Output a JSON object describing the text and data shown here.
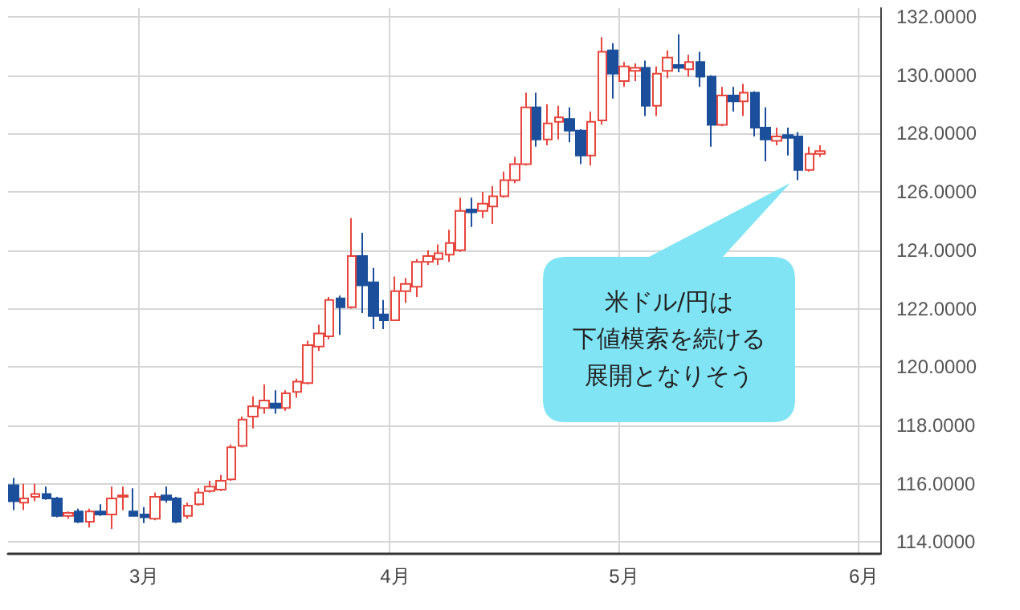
{
  "chart_data": {
    "type": "candlestick",
    "categories": [
      null,
      null,
      null,
      null,
      null,
      null,
      null,
      null,
      null,
      null,
      null,
      null,
      "3月",
      null,
      null,
      null,
      null,
      null,
      null,
      null,
      null,
      null,
      null,
      null,
      null,
      null,
      null,
      null,
      null,
      null,
      null,
      null,
      null,
      null,
      null,
      "4月",
      null,
      null,
      null,
      null,
      null,
      null,
      null,
      null,
      null,
      null,
      null,
      null,
      null,
      null,
      null,
      null,
      null,
      null,
      null,
      null,
      "5月",
      null,
      null,
      null,
      null,
      null,
      null,
      null,
      null,
      null,
      null,
      null,
      null,
      null,
      null,
      null,
      null,
      null,
      null,
      null,
      null,
      null,
      "6月",
      null
    ],
    "ohlc": [
      [
        115.95,
        116.2,
        115.1,
        115.4
      ],
      [
        115.35,
        116.0,
        115.1,
        115.5
      ],
      [
        115.55,
        116.0,
        115.4,
        115.65
      ],
      [
        115.65,
        115.9,
        115.45,
        115.5
      ],
      [
        115.5,
        115.55,
        114.85,
        114.9
      ],
      [
        114.9,
        115.05,
        114.8,
        115.0
      ],
      [
        115.05,
        115.15,
        114.65,
        114.7
      ],
      [
        114.7,
        115.15,
        114.5,
        115.05
      ],
      [
        115.05,
        115.3,
        114.9,
        114.95
      ],
      [
        114.95,
        115.9,
        114.45,
        115.5
      ],
      [
        115.55,
        115.9,
        115.1,
        115.6
      ],
      [
        115.05,
        115.85,
        114.9,
        114.9
      ],
      [
        114.95,
        115.2,
        114.65,
        114.85
      ],
      [
        114.8,
        115.7,
        114.75,
        115.55
      ],
      [
        115.6,
        115.9,
        115.35,
        115.45
      ],
      [
        115.5,
        115.55,
        114.65,
        114.7
      ],
      [
        114.9,
        115.35,
        114.8,
        115.25
      ],
      [
        115.3,
        115.85,
        115.25,
        115.7
      ],
      [
        115.75,
        116.1,
        115.7,
        115.9
      ],
      [
        115.8,
        116.3,
        115.75,
        116.1
      ],
      [
        116.15,
        117.35,
        116.1,
        117.25
      ],
      [
        117.3,
        118.3,
        117.25,
        118.2
      ],
      [
        118.3,
        119.0,
        117.9,
        118.65
      ],
      [
        118.6,
        119.4,
        118.4,
        118.85
      ],
      [
        118.75,
        119.2,
        118.4,
        118.6
      ],
      [
        118.6,
        119.2,
        118.5,
        119.1
      ],
      [
        119.15,
        119.6,
        118.95,
        119.5
      ],
      [
        119.45,
        120.9,
        119.4,
        120.75
      ],
      [
        120.7,
        121.45,
        120.55,
        121.15
      ],
      [
        121.05,
        122.4,
        120.95,
        122.3
      ],
      [
        122.35,
        122.45,
        121.1,
        122.05
      ],
      [
        122.05,
        125.1,
        122.0,
        123.8
      ],
      [
        123.8,
        124.6,
        121.85,
        122.8
      ],
      [
        122.9,
        123.4,
        121.3,
        121.75
      ],
      [
        121.8,
        122.3,
        121.3,
        121.6
      ],
      [
        121.6,
        123.1,
        121.6,
        122.6
      ],
      [
        122.6,
        123.05,
        122.2,
        122.85
      ],
      [
        122.75,
        123.7,
        122.4,
        123.6
      ],
      [
        123.6,
        124.0,
        123.5,
        123.8
      ],
      [
        123.7,
        124.2,
        123.5,
        123.9
      ],
      [
        123.85,
        124.7,
        123.6,
        124.25
      ],
      [
        124.0,
        125.8,
        123.95,
        125.35
      ],
      [
        125.4,
        125.8,
        124.8,
        125.3
      ],
      [
        125.35,
        126.0,
        125.1,
        125.6
      ],
      [
        125.5,
        126.2,
        124.9,
        125.85
      ],
      [
        125.85,
        126.7,
        125.8,
        126.4
      ],
      [
        126.4,
        127.2,
        126.3,
        126.95
      ],
      [
        126.95,
        129.4,
        126.9,
        128.9
      ],
      [
        128.9,
        129.4,
        127.55,
        127.8
      ],
      [
        127.8,
        129.0,
        127.6,
        128.35
      ],
      [
        128.4,
        128.95,
        127.8,
        128.55
      ],
      [
        128.5,
        128.9,
        127.7,
        128.1
      ],
      [
        128.1,
        128.15,
        126.95,
        127.25
      ],
      [
        127.25,
        128.75,
        126.9,
        128.4
      ],
      [
        128.45,
        131.3,
        128.3,
        130.8
      ],
      [
        130.85,
        131.1,
        129.2,
        130.05
      ],
      [
        129.8,
        130.45,
        129.6,
        130.3
      ],
      [
        130.15,
        130.4,
        129.8,
        130.25
      ],
      [
        130.25,
        130.5,
        128.6,
        128.95
      ],
      [
        128.95,
        130.3,
        128.6,
        130.05
      ],
      [
        130.15,
        130.85,
        129.9,
        130.6
      ],
      [
        130.35,
        131.4,
        130.1,
        130.25
      ],
      [
        130.2,
        130.7,
        129.95,
        130.45
      ],
      [
        130.45,
        130.8,
        129.6,
        129.95
      ],
      [
        129.95,
        130.0,
        127.55,
        128.3
      ],
      [
        128.3,
        129.6,
        128.25,
        129.3
      ],
      [
        129.3,
        129.6,
        128.75,
        129.1
      ],
      [
        129.1,
        129.7,
        128.6,
        129.4
      ],
      [
        129.4,
        129.45,
        127.9,
        128.2
      ],
      [
        128.2,
        128.9,
        127.05,
        127.8
      ],
      [
        127.75,
        128.2,
        127.6,
        127.9
      ],
      [
        127.95,
        128.2,
        127.25,
        127.85
      ],
      [
        127.9,
        128.05,
        126.4,
        126.75
      ],
      [
        126.75,
        127.55,
        126.7,
        127.3
      ],
      [
        127.3,
        127.6,
        127.2,
        127.4
      ],
      null,
      null,
      null,
      null,
      null
    ],
    "colors": [
      "#1b4f9c",
      "#e8453c",
      "#e8453c",
      "#1b4f9c",
      "#1b4f9c",
      "#e8453c",
      "#1b4f9c",
      "#e8453c",
      "#1b4f9c",
      "#e8453c",
      "#e8453c",
      "#1b4f9c",
      "#1b4f9c",
      "#e8453c",
      "#1b4f9c",
      "#1b4f9c",
      "#e8453c",
      "#e8453c",
      "#e8453c",
      "#e8453c",
      "#e8453c",
      "#e8453c",
      "#e8453c",
      "#e8453c",
      "#1b4f9c",
      "#e8453c",
      "#e8453c",
      "#e8453c",
      "#e8453c",
      "#e8453c",
      "#1b4f9c",
      "#e8453c",
      "#1b4f9c",
      "#1b4f9c",
      "#1b4f9c",
      "#e8453c",
      "#e8453c",
      "#e8453c",
      "#e8453c",
      "#e8453c",
      "#e8453c",
      "#e8453c",
      "#1b4f9c",
      "#e8453c",
      "#e8453c",
      "#e8453c",
      "#e8453c",
      "#e8453c",
      "#1b4f9c",
      "#e8453c",
      "#e8453c",
      "#1b4f9c",
      "#1b4f9c",
      "#e8453c",
      "#e8453c",
      "#1b4f9c",
      "#e8453c",
      "#e8453c",
      "#1b4f9c",
      "#e8453c",
      "#e8453c",
      "#1b4f9c",
      "#e8453c",
      "#1b4f9c",
      "#1b4f9c",
      "#e8453c",
      "#1b4f9c",
      "#e8453c",
      "#1b4f9c",
      "#1b4f9c",
      "#e8453c",
      "#1b4f9c",
      "#1b4f9c",
      "#e8453c",
      "#e8453c",
      null,
      null,
      null,
      null,
      null
    ],
    "ylim": [
      113.6,
      132.3
    ],
    "yticks": [
      {
        "value": 114,
        "label": "114.0000"
      },
      {
        "value": 116,
        "label": "116.0000"
      },
      {
        "value": 118,
        "label": "118.0000"
      },
      {
        "value": 120,
        "label": "120.0000"
      },
      {
        "value": 122,
        "label": "122.0000"
      },
      {
        "value": 124,
        "label": "124.0000"
      },
      {
        "value": 126,
        "label": "126.0000"
      },
      {
        "value": 128,
        "label": "128.0000"
      },
      {
        "value": 130,
        "label": "130.0000"
      },
      {
        "value": 132,
        "label": "132.0000"
      }
    ],
    "grid": true,
    "annotations": [
      "米ドル/円は",
      "下値模索を続ける",
      "展開となりそう"
    ]
  }
}
